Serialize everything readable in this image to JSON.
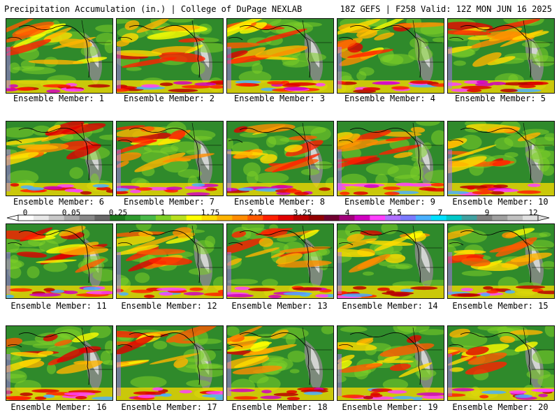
{
  "header": {
    "left": "Precipitation Accumulation (in.) | College of DuPage NEXLAB",
    "right": "18Z GEFS | F258 Valid: 12Z MON JUN 16 2025"
  },
  "colorbar": {
    "labels": [
      "0",
      "0.05",
      "0.25",
      "1",
      "1.75",
      "2.5",
      "3.25",
      "4",
      "5.5",
      "7",
      "9",
      "12"
    ],
    "colors": [
      "#ffffff",
      "#e8e8e8",
      "#c8c8c8",
      "#a8a8a8",
      "#888888",
      "#686868",
      "#1d7a1d",
      "#2e9a2e",
      "#48b848",
      "#7ed028",
      "#b8e01e",
      "#ffff00",
      "#ffdc00",
      "#ffb400",
      "#ff8c00",
      "#ff5a00",
      "#ff2000",
      "#e00000",
      "#b80000",
      "#900000",
      "#700030",
      "#a0007a",
      "#d000c0",
      "#ff40ff",
      "#b070ff",
      "#7a7aff",
      "#4ab0ff",
      "#00e0ff",
      "#00c8c8",
      "#40a0a0",
      "#808080",
      "#a0a0a0",
      "#c0c0c0",
      "#e0e0e0"
    ],
    "icons": [
      "left-arrow-icon",
      "right-arrow-icon"
    ]
  },
  "members": [
    {
      "caption": "Ensemble Member: 1"
    },
    {
      "caption": "Ensemble Member: 2"
    },
    {
      "caption": "Ensemble Member: 3"
    },
    {
      "caption": "Ensemble Member: 4"
    },
    {
      "caption": "Ensemble Member: 5"
    },
    {
      "caption": "Ensemble Member: 6"
    },
    {
      "caption": "Ensemble Member: 7"
    },
    {
      "caption": "Ensemble Member: 8"
    },
    {
      "caption": "Ensemble Member: 9"
    },
    {
      "caption": "Ensemble Member: 10"
    },
    {
      "caption": "Ensemble Member: 11"
    },
    {
      "caption": "Ensemble Member: 12"
    },
    {
      "caption": "Ensemble Member: 13"
    },
    {
      "caption": "Ensemble Member: 14"
    },
    {
      "caption": "Ensemble Member: 15"
    },
    {
      "caption": "Ensemble Member: 16"
    },
    {
      "caption": "Ensemble Member: 17"
    },
    {
      "caption": "Ensemble Member: 18"
    },
    {
      "caption": "Ensemble Member: 19"
    },
    {
      "caption": "Ensemble Member: 20"
    }
  ]
}
